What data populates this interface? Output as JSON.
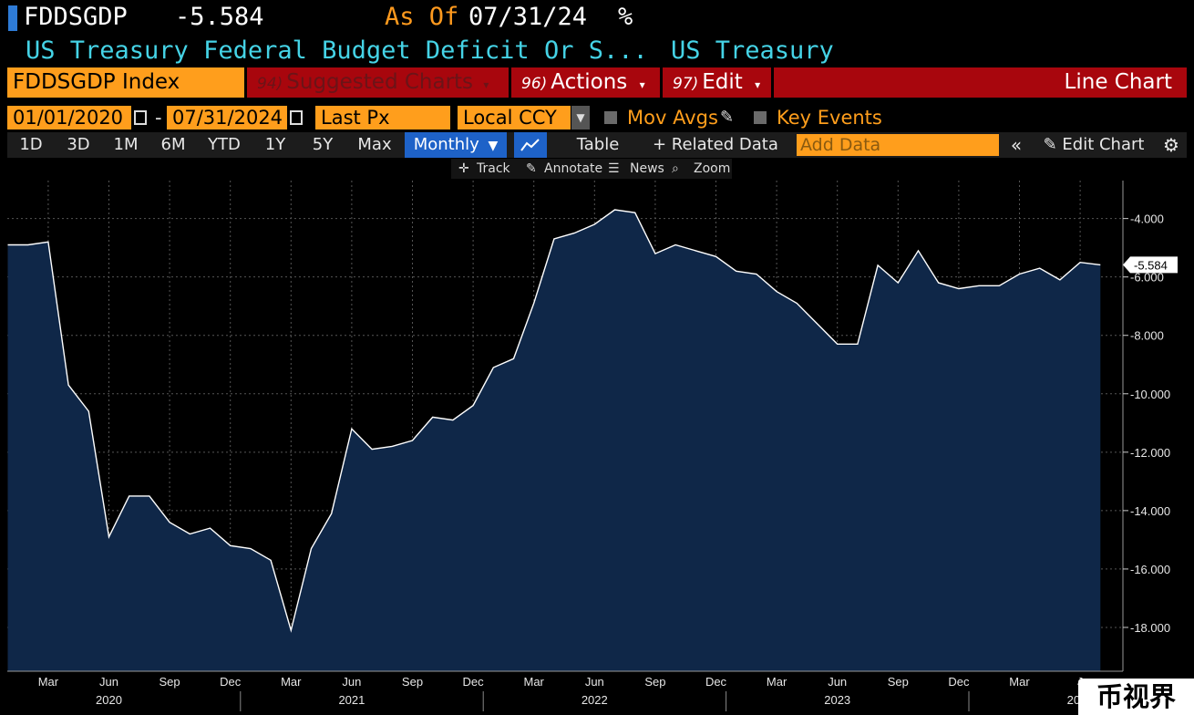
{
  "header": {
    "ticker": "FDDSGDP",
    "last_value": "-5.584",
    "as_of_label": "As Of",
    "as_of_date": "07/31/24",
    "unit": "%",
    "description": "US Treasury Federal Budget Deficit Or S...",
    "source": "US Treasury"
  },
  "toolbar": {
    "index_label": "FDDSGDP Index",
    "suggested_num": "94)",
    "suggested_label": "Suggested Charts",
    "actions_num": "96)",
    "actions_label": "Actions",
    "edit_num": "97)",
    "edit_label": "Edit",
    "chart_type_label": "Line Chart"
  },
  "options": {
    "start_date": "01/01/2020",
    "range_sep": "-",
    "end_date": "07/31/2024",
    "price_field": "Last Px",
    "currency": "Local CCY",
    "mov_avgs_label": "Mov Avgs",
    "key_events_label": "Key Events"
  },
  "periods": {
    "buttons": [
      "1D",
      "3D",
      "1M",
      "6M",
      "YTD",
      "1Y",
      "5Y",
      "Max"
    ],
    "frequency": "Monthly",
    "table_label": "Table",
    "related_label": "+ Related Data",
    "add_data_placeholder": "Add Data",
    "edit_chart_label": "Edit Chart"
  },
  "tools": {
    "track": "Track",
    "annotate": "Annotate",
    "news": "News",
    "zoom": "Zoom"
  },
  "watermark": "币视界",
  "colors": {
    "accent_orange": "#ff9e1c",
    "toolbar_red": "#a8060d",
    "title_cyan": "#45d3e6",
    "area_fill": "#0f2748",
    "selected_blue": "#1e62c8"
  },
  "chart_data": {
    "type": "area",
    "x_unit": "month",
    "x": [
      "2020-01",
      "2020-02",
      "2020-03",
      "2020-04",
      "2020-05",
      "2020-06",
      "2020-07",
      "2020-08",
      "2020-09",
      "2020-10",
      "2020-11",
      "2020-12",
      "2021-01",
      "2021-02",
      "2021-03",
      "2021-04",
      "2021-05",
      "2021-06",
      "2021-07",
      "2021-08",
      "2021-09",
      "2021-10",
      "2021-11",
      "2021-12",
      "2022-01",
      "2022-02",
      "2022-03",
      "2022-04",
      "2022-05",
      "2022-06",
      "2022-07",
      "2022-08",
      "2022-09",
      "2022-10",
      "2022-11",
      "2022-12",
      "2023-01",
      "2023-02",
      "2023-03",
      "2023-04",
      "2023-05",
      "2023-06",
      "2023-07",
      "2023-08",
      "2023-09",
      "2023-10",
      "2023-11",
      "2023-12",
      "2024-01",
      "2024-02",
      "2024-03",
      "2024-04",
      "2024-05",
      "2024-06",
      "2024-07"
    ],
    "values": [
      -4.9,
      -4.9,
      -4.8,
      -9.7,
      -10.6,
      -14.9,
      -13.5,
      -13.5,
      -14.4,
      -14.8,
      -14.6,
      -15.2,
      -15.3,
      -15.7,
      -18.1,
      -15.3,
      -14.1,
      -11.2,
      -11.9,
      -11.8,
      -11.6,
      -10.8,
      -10.9,
      -10.4,
      -9.1,
      -8.8,
      -6.9,
      -4.7,
      -4.5,
      -4.2,
      -3.7,
      -3.8,
      -5.2,
      -4.9,
      -5.1,
      -5.3,
      -5.8,
      -5.9,
      -6.5,
      -6.9,
      -7.6,
      -8.3,
      -8.3,
      -5.6,
      -6.2,
      -5.1,
      -6.2,
      -6.4,
      -6.3,
      -6.3,
      -5.9,
      -5.7,
      -6.1,
      -5.5,
      -5.584
    ],
    "ylim": [
      -19.5,
      -2.7
    ],
    "y_ticks": [
      -4.0,
      -6.0,
      -8.0,
      -10.0,
      -12.0,
      -14.0,
      -16.0,
      -18.0
    ],
    "y_tick_labels": [
      "-4.000",
      "-6.000",
      "-8.000",
      "-10.000",
      "-12.000",
      "-14.000",
      "-16.000",
      "-18.000"
    ],
    "x_month_labels": [
      {
        "x": "2020-03",
        "label": "Mar"
      },
      {
        "x": "2020-06",
        "label": "Jun"
      },
      {
        "x": "2020-09",
        "label": "Sep"
      },
      {
        "x": "2020-12",
        "label": "Dec"
      },
      {
        "x": "2021-03",
        "label": "Mar"
      },
      {
        "x": "2021-06",
        "label": "Jun"
      },
      {
        "x": "2021-09",
        "label": "Sep"
      },
      {
        "x": "2021-12",
        "label": "Dec"
      },
      {
        "x": "2022-03",
        "label": "Mar"
      },
      {
        "x": "2022-06",
        "label": "Jun"
      },
      {
        "x": "2022-09",
        "label": "Sep"
      },
      {
        "x": "2022-12",
        "label": "Dec"
      },
      {
        "x": "2023-03",
        "label": "Mar"
      },
      {
        "x": "2023-06",
        "label": "Jun"
      },
      {
        "x": "2023-09",
        "label": "Sep"
      },
      {
        "x": "2023-12",
        "label": "Dec"
      },
      {
        "x": "2024-03",
        "label": "Mar"
      },
      {
        "x": "2024-06",
        "label": "J"
      }
    ],
    "x_year_labels": [
      {
        "x": "2020-06",
        "label": "2020"
      },
      {
        "x": "2021-06",
        "label": "2021"
      },
      {
        "x": "2022-06",
        "label": "2022"
      },
      {
        "x": "2023-06",
        "label": "2023"
      },
      {
        "x": "2024-06",
        "label": "2024"
      }
    ],
    "last_value_label": "-5.584",
    "grid": true,
    "line_color": "#ffffff",
    "fill_color": "#0f2748"
  }
}
